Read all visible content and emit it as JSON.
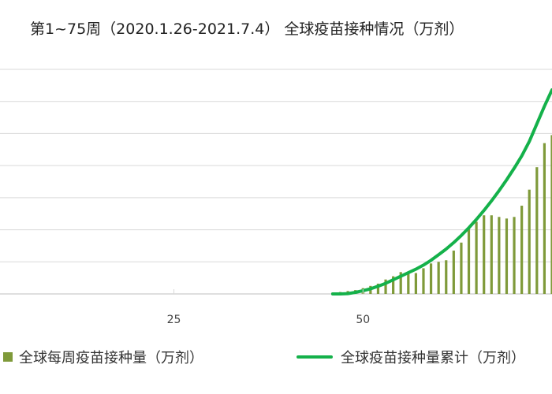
{
  "colors": {
    "bar": "#7f9a3a",
    "line": "#14b14a",
    "grid": "#d9d9d9",
    "axis": "#bfbfbf"
  },
  "chart_data": {
    "type": "bar+line",
    "title": "第1~75周（2020.1.26-2021.7.4） 全球疫苗接种情况（万剂）",
    "x": [
      46,
      47,
      48,
      49,
      50,
      51,
      52,
      53,
      54,
      55,
      56,
      57,
      58,
      59,
      60,
      61,
      62,
      63,
      64,
      65,
      66,
      67,
      68,
      69,
      70,
      71,
      72,
      73,
      74,
      75
    ],
    "x_ticks": [
      {
        "value": 25,
        "label": "25"
      },
      {
        "value": 50,
        "label": "50"
      }
    ],
    "xlim": [
      2,
      75
    ],
    "ylim": [
      0,
      7
    ],
    "grid": true,
    "series": [
      {
        "name": "全球每周疫苗接种量（万剂）",
        "kind": "bar",
        "values": [
          0.04,
          0.06,
          0.09,
          0.12,
          0.18,
          0.25,
          0.32,
          0.45,
          0.55,
          0.68,
          0.7,
          0.65,
          0.8,
          0.95,
          1.0,
          1.05,
          1.35,
          1.6,
          2.05,
          2.25,
          2.45,
          2.45,
          2.4,
          2.35,
          2.4,
          2.75,
          3.25,
          3.95,
          4.7,
          4.95
        ]
      },
      {
        "name": "全球疫苗接种量累计（万剂）",
        "kind": "line",
        "values": [
          0.0,
          0.0,
          0.01,
          0.05,
          0.1,
          0.16,
          0.24,
          0.33,
          0.44,
          0.55,
          0.66,
          0.77,
          0.9,
          1.05,
          1.22,
          1.4,
          1.6,
          1.82,
          2.06,
          2.32,
          2.6,
          2.9,
          3.22,
          3.56,
          3.92,
          4.3,
          4.75,
          5.3,
          5.85,
          6.36
        ]
      }
    ],
    "legend_position": "bottom"
  },
  "legend": {
    "items": [
      "全球每周疫苗接种量（万剂）",
      "全球疫苗接种量累计（万剂）"
    ]
  }
}
